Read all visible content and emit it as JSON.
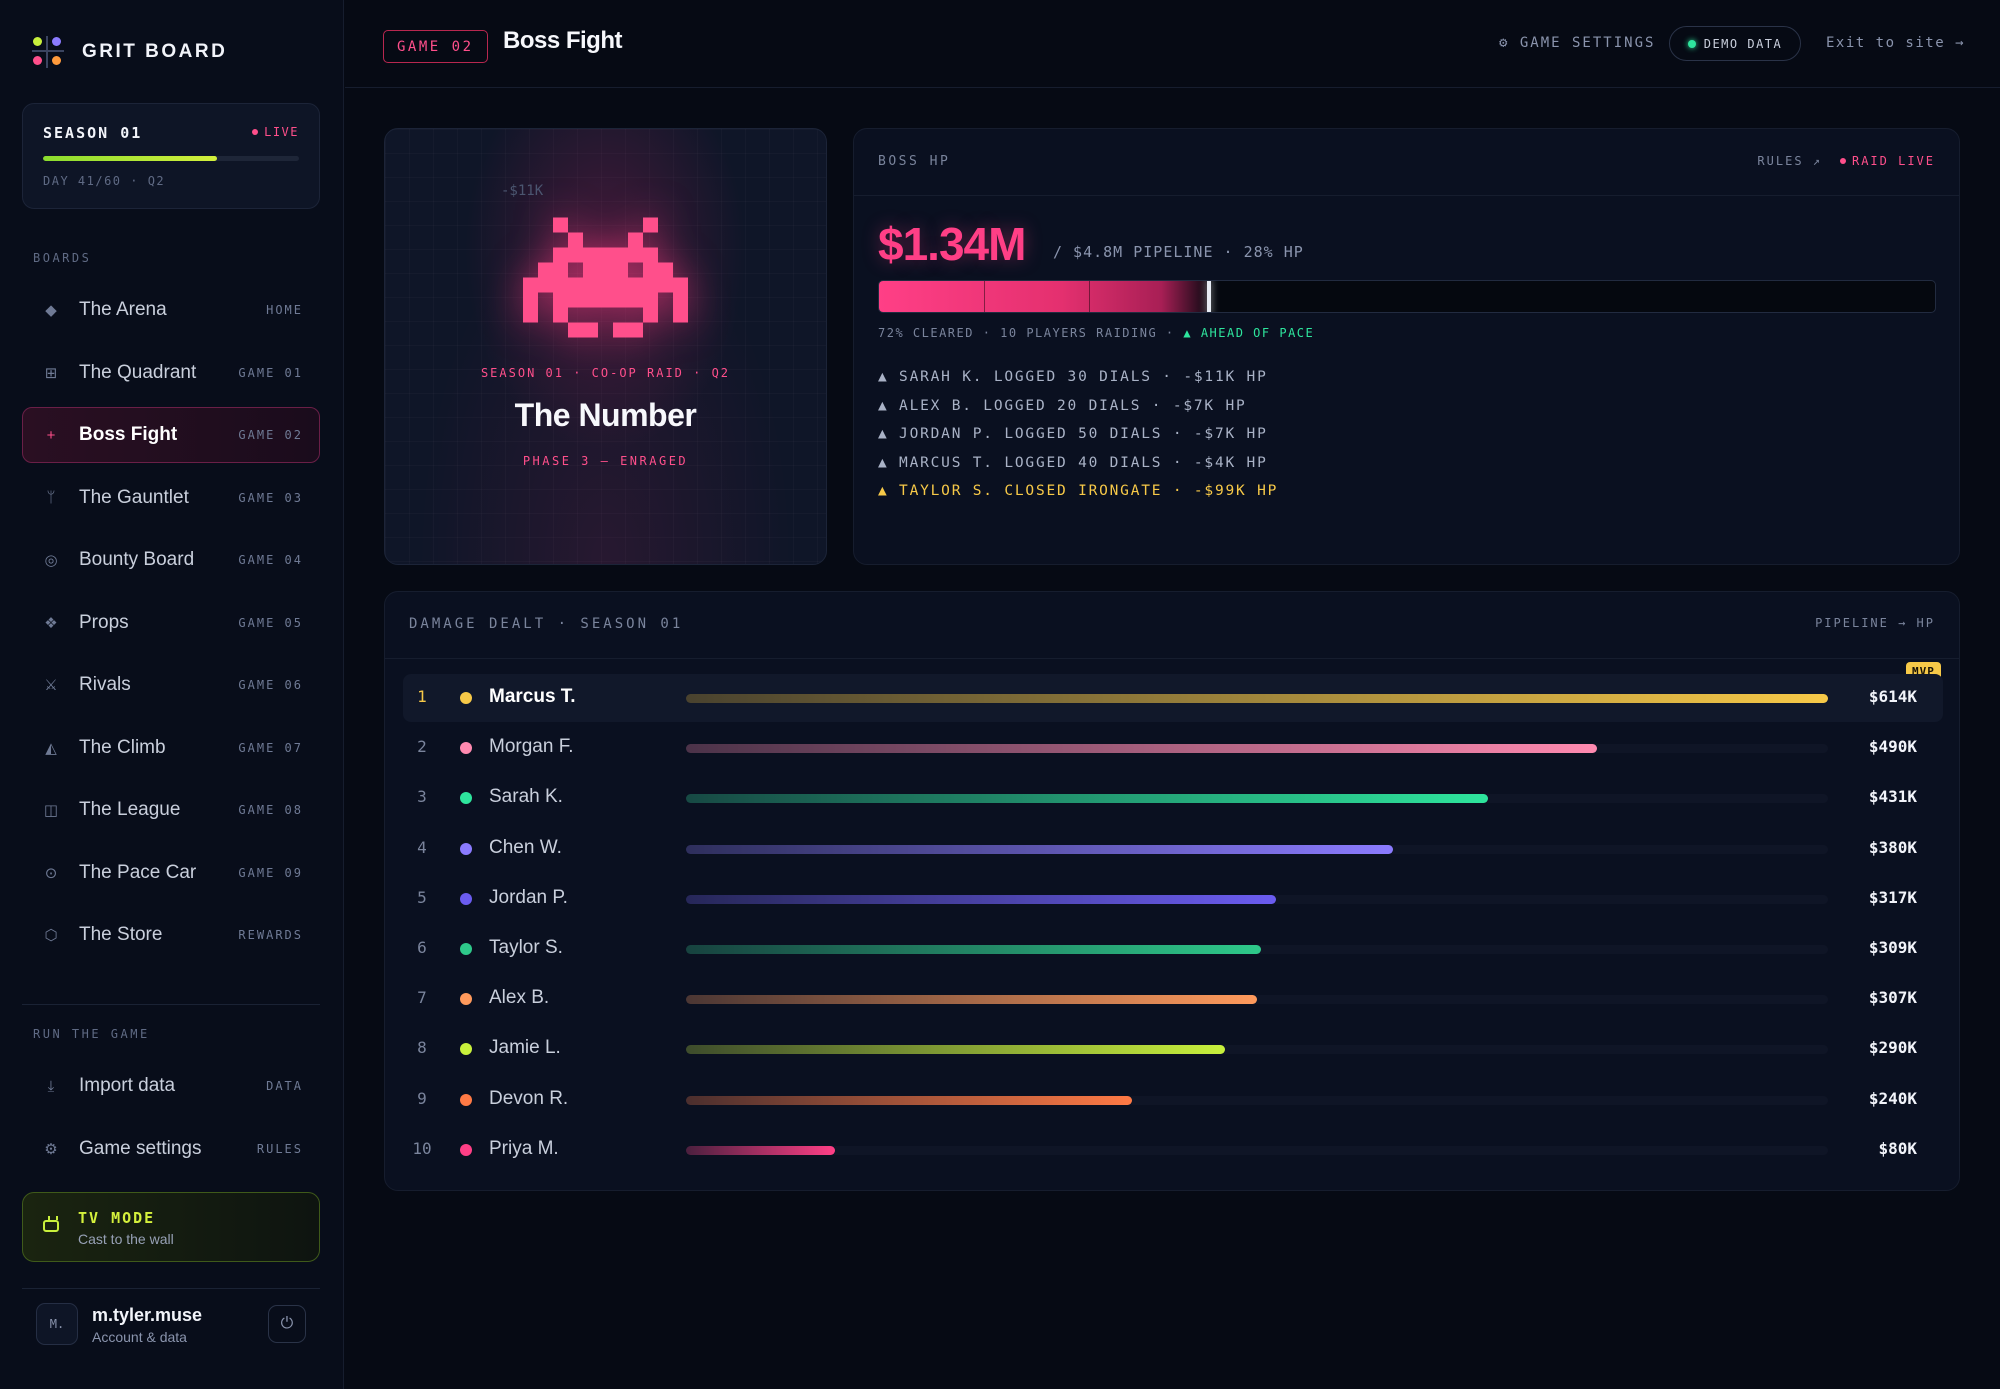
{
  "app": {
    "brand": "GRIT BOARD",
    "brand_dots": [
      "#c8f03c",
      "#8b7bff",
      "#ff4f8b",
      "#ff9a3c"
    ]
  },
  "season": {
    "title": "SEASON 01",
    "status": "LIVE",
    "progress": 0.68,
    "meta": "DAY 41/60 · Q2"
  },
  "sidebar": {
    "boards_label": "BOARDS",
    "boards": [
      {
        "icon": "diamond-icon",
        "glyph": "◆",
        "label": "The Arena",
        "tag": "HOME",
        "active": false
      },
      {
        "icon": "quadrant-icon",
        "glyph": "⊞",
        "label": "The Quadrant",
        "tag": "GAME 01",
        "active": false
      },
      {
        "icon": "crosshair-icon",
        "glyph": "+",
        "label": "Boss Fight",
        "tag": "GAME 02",
        "active": true
      },
      {
        "icon": "fork-icon",
        "glyph": "ᛘ",
        "label": "The Gauntlet",
        "tag": "GAME 03",
        "active": false
      },
      {
        "icon": "target-icon",
        "glyph": "◎",
        "label": "Bounty Board",
        "tag": "GAME 04",
        "active": false
      },
      {
        "icon": "props-icon",
        "glyph": "❖",
        "label": "Props",
        "tag": "GAME 05",
        "active": false
      },
      {
        "icon": "swords-icon",
        "glyph": "⚔",
        "label": "Rivals",
        "tag": "GAME 06",
        "active": false
      },
      {
        "icon": "mountain-icon",
        "glyph": "◭",
        "label": "The Climb",
        "tag": "GAME 07",
        "active": false
      },
      {
        "icon": "league-icon",
        "glyph": "◫",
        "label": "The League",
        "tag": "GAME 08",
        "active": false
      },
      {
        "icon": "gauge-icon",
        "glyph": "⊙",
        "label": "The Pace Car",
        "tag": "GAME 09",
        "active": false
      },
      {
        "icon": "store-icon",
        "glyph": "⬡",
        "label": "The Store",
        "tag": "REWARDS",
        "active": false
      }
    ],
    "run_label": "RUN THE GAME",
    "run_items": [
      {
        "icon": "download-icon",
        "glyph": "⤓",
        "label": "Import data",
        "tag": "DATA"
      },
      {
        "icon": "gear-icon",
        "glyph": "⚙",
        "label": "Game settings",
        "tag": "RULES"
      }
    ],
    "tv_mode": {
      "title": "TV MODE",
      "subtitle": "Cast to the wall"
    },
    "user": {
      "initials": "M.",
      "name": "m.tyler.muse",
      "subtitle": "Account & data"
    }
  },
  "header": {
    "game_badge": "GAME 02",
    "title": "Boss Fight",
    "settings": "⚙ GAME SETTINGS",
    "demo": "DEMO DATA",
    "exit": "Exit to site →"
  },
  "boss": {
    "floating_damage": "-$11K",
    "kicker": "SEASON 01 · CO-OP RAID · Q2",
    "name": "The Number",
    "phase": "PHASE 3 — ENRAGED"
  },
  "hp": {
    "label": "BOSS HP",
    "rules": "RULES ↗",
    "raid": "RAID LIVE",
    "value": "$1.34M",
    "of": "/ $4.8M PIPELINE · 28% HP",
    "remaining": 0.28,
    "status_prefix": "72% CLEARED · 10 PLAYERS RAIDING ·",
    "status_pace": "▲ AHEAD OF PACE",
    "log": [
      {
        "text": "▲ SARAH K. LOGGED 30 DIALS · -$11K HP",
        "highlight": false
      },
      {
        "text": "▲ ALEX B. LOGGED 20 DIALS · -$7K HP",
        "highlight": false
      },
      {
        "text": "▲ JORDAN P. LOGGED 50 DIALS · -$7K HP",
        "highlight": false
      },
      {
        "text": "▲ MARCUS T. LOGGED 40 DIALS · -$4K HP",
        "highlight": false
      },
      {
        "text": "▲ TAYLOR S. CLOSED IRONGATE · -$99K HP",
        "highlight": true
      }
    ]
  },
  "damage": {
    "title": "DAMAGE DEALT · SEASON 01",
    "unit": "PIPELINE → HP",
    "mvp": "MVP"
  },
  "chart_data": {
    "type": "bar",
    "categories": [
      "Marcus T.",
      "Morgan F.",
      "Sarah K.",
      "Chen W.",
      "Jordan P.",
      "Taylor S.",
      "Alex B.",
      "Jamie L.",
      "Devon R.",
      "Priya M."
    ],
    "values": [
      614,
      490,
      431,
      380,
      317,
      309,
      307,
      290,
      240,
      80
    ],
    "labels": [
      "$614K",
      "$490K",
      "$431K",
      "$380K",
      "$317K",
      "$309K",
      "$307K",
      "$290K",
      "$240K",
      "$80K"
    ],
    "ranks": [
      "1",
      "2",
      "3",
      "4",
      "5",
      "6",
      "7",
      "8",
      "9",
      "10"
    ],
    "colors": [
      "#f7c948",
      "#ff8ab0",
      "#2ee59d",
      "#8b7bff",
      "#6b5cf0",
      "#2ec98a",
      "#ff9a5c",
      "#c8f03c",
      "#ff7a45",
      "#ff3f86"
    ],
    "title": "DAMAGE DEALT · SEASON 01",
    "orientation": "horizontal",
    "xlim": [
      0,
      614
    ]
  }
}
